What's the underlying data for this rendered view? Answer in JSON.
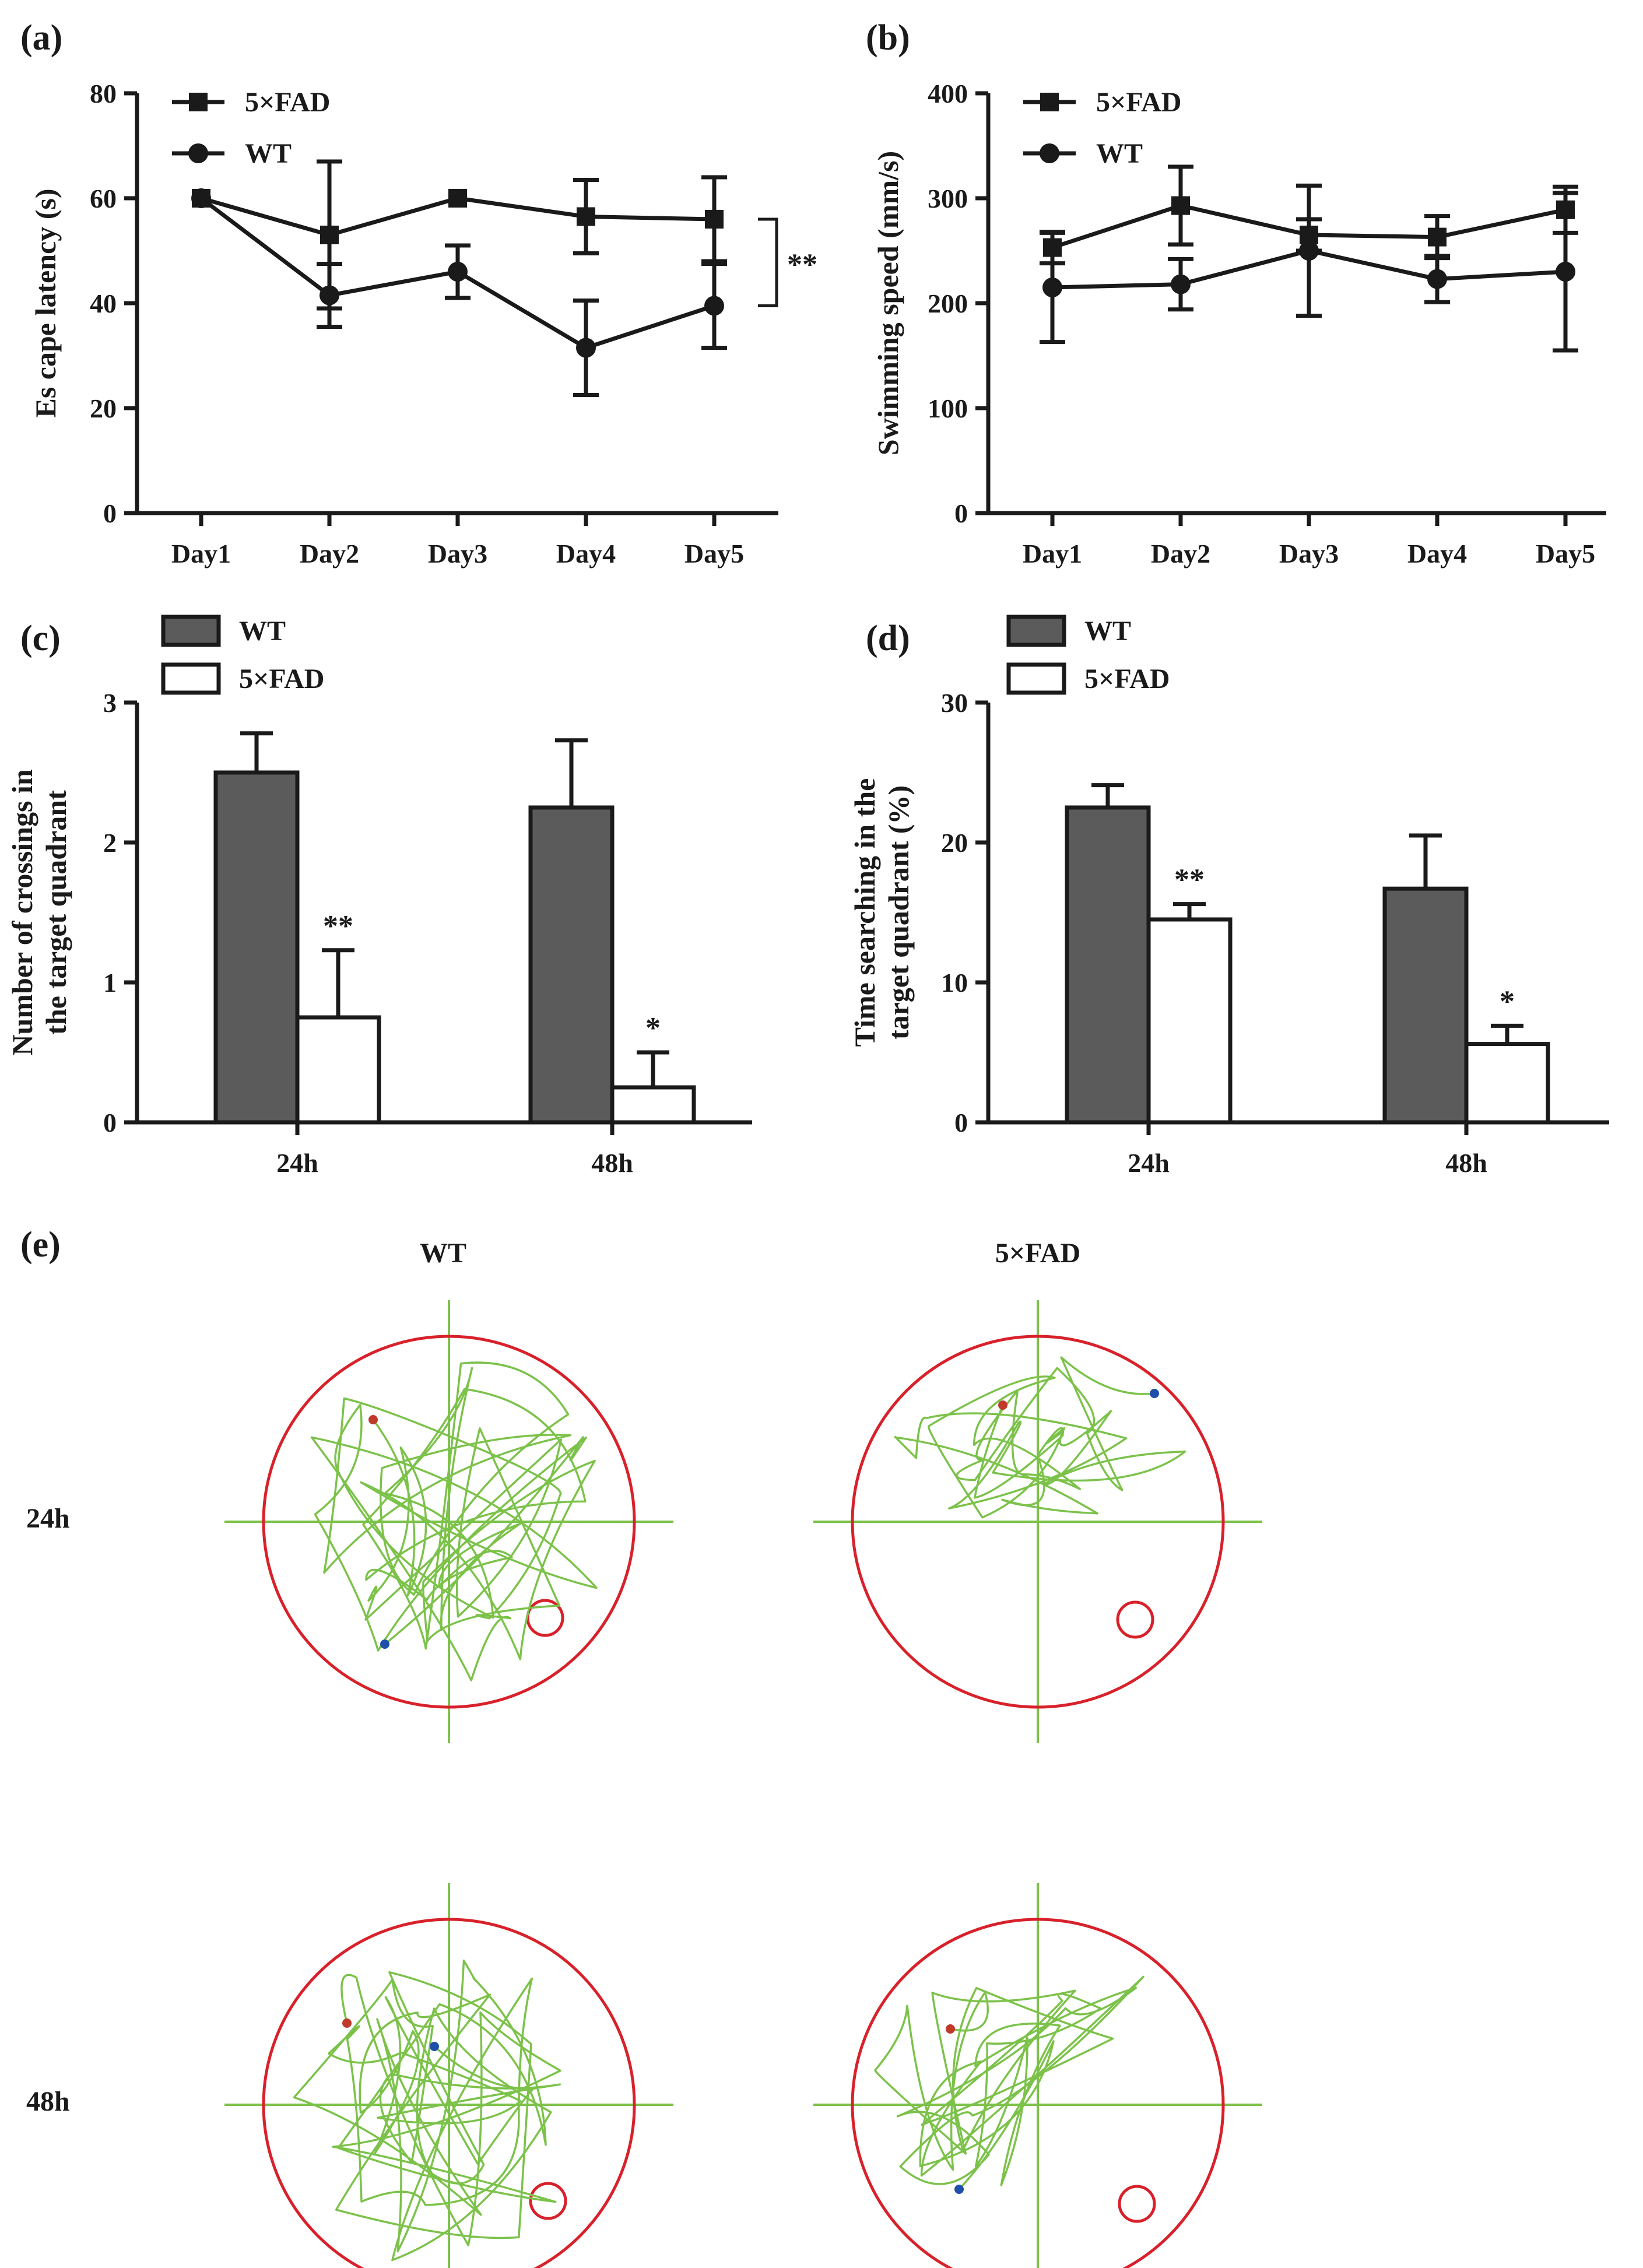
{
  "panels": {
    "a": "(a)",
    "b": "(b)",
    "c": "(c)",
    "d": "(d)",
    "e": "(e)"
  },
  "colors": {
    "ink": "#1a1a1a",
    "bar_wt": "#5b5b5b",
    "bar_fad": "#ffffff",
    "track": "#7cc24a",
    "pool": "#d8212a",
    "start_dot": "#c0392b",
    "end_dot": "#1f4fa8"
  },
  "chart_data": [
    {
      "id": "a",
      "type": "line",
      "ylabel": "Es cape latency (s)",
      "xlabel": "",
      "categories": [
        "Day1",
        "Day2",
        "Day3",
        "Day4",
        "Day5"
      ],
      "ylim": [
        0,
        80
      ],
      "yticks": [
        0,
        20,
        40,
        60,
        80
      ],
      "series": [
        {
          "name": "5×FAD",
          "marker": "square",
          "values": [
            60,
            53,
            60,
            56.5,
            56
          ],
          "err": [
            0,
            14,
            0,
            7,
            8
          ]
        },
        {
          "name": "WT",
          "marker": "circle",
          "values": [
            60,
            41.5,
            46,
            31.5,
            39.5
          ],
          "err": [
            0,
            6,
            5,
            9,
            8
          ]
        }
      ],
      "annotation": "**",
      "legend": "top-left"
    },
    {
      "id": "b",
      "type": "line",
      "ylabel": "Swimming speed (mm/s)",
      "xlabel": "",
      "categories": [
        "Day1",
        "Day2",
        "Day3",
        "Day4",
        "Day5"
      ],
      "ylim": [
        0,
        400
      ],
      "yticks": [
        0,
        100,
        200,
        300,
        400
      ],
      "series": [
        {
          "name": "5×FAD",
          "marker": "square",
          "values": [
            253,
            293,
            265,
            263,
            289
          ],
          "err": [
            15,
            37,
            15,
            20,
            22
          ]
        },
        {
          "name": "WT",
          "marker": "circle",
          "values": [
            215,
            218,
            250,
            223,
            230
          ],
          "err": [
            52,
            24,
            62,
            22,
            75
          ]
        }
      ],
      "legend": "top-left"
    },
    {
      "id": "c",
      "type": "bar",
      "ylabel_lines": [
        "Number of crossings in",
        "the target quadrant"
      ],
      "categories": [
        "24h",
        "48h"
      ],
      "ylim": [
        0,
        3
      ],
      "yticks": [
        0,
        1,
        2,
        3
      ],
      "series": [
        {
          "name": "WT",
          "values": [
            2.5,
            2.25
          ],
          "err": [
            0.28,
            0.48
          ]
        },
        {
          "name": "5×FAD",
          "values": [
            0.75,
            0.25
          ],
          "err": [
            0.48,
            0.25
          ]
        }
      ],
      "annotations": [
        "**",
        "*"
      ],
      "legend": "top-left"
    },
    {
      "id": "d",
      "type": "bar",
      "ylabel_lines": [
        "Time searching in the",
        "target quadrant (%)"
      ],
      "categories": [
        "24h",
        "48h"
      ],
      "ylim": [
        0,
        30
      ],
      "yticks": [
        0,
        10,
        20,
        30
      ],
      "series": [
        {
          "name": "WT",
          "values": [
            22.5,
            16.7
          ],
          "err": [
            1.6,
            3.8
          ]
        },
        {
          "name": "5×FAD",
          "values": [
            14.5,
            5.6
          ],
          "err": [
            1.1,
            1.3
          ]
        }
      ],
      "annotations": [
        "**",
        "*"
      ],
      "legend": "top-left"
    }
  ],
  "panel_e": {
    "columns": [
      "WT",
      "5×FAD"
    ],
    "rows": [
      "24h",
      "48h"
    ]
  }
}
